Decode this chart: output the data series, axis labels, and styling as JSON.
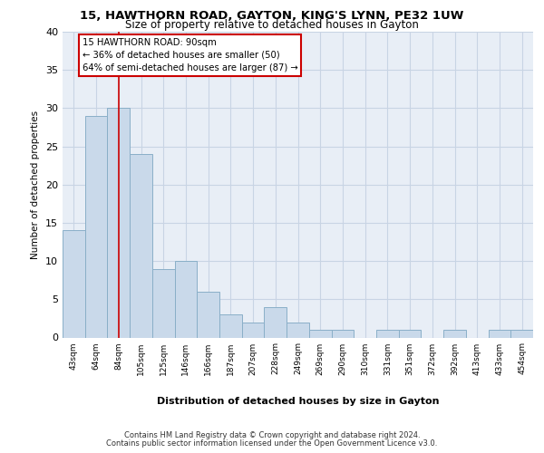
{
  "title1": "15, HAWTHORN ROAD, GAYTON, KING'S LYNN, PE32 1UW",
  "title2": "Size of property relative to detached houses in Gayton",
  "xlabel": "Distribution of detached houses by size in Gayton",
  "ylabel": "Number of detached properties",
  "categories": [
    "43sqm",
    "64sqm",
    "84sqm",
    "105sqm",
    "125sqm",
    "146sqm",
    "166sqm",
    "187sqm",
    "207sqm",
    "228sqm",
    "249sqm",
    "269sqm",
    "290sqm",
    "310sqm",
    "331sqm",
    "351sqm",
    "372sqm",
    "392sqm",
    "413sqm",
    "433sqm",
    "454sqm"
  ],
  "values": [
    14,
    29,
    30,
    24,
    9,
    10,
    6,
    3,
    2,
    4,
    2,
    1,
    1,
    0,
    1,
    1,
    0,
    1,
    0,
    1,
    1
  ],
  "bar_color": "#c9d9ea",
  "bar_edge_color": "#8aafc8",
  "grid_color": "#c8d4e4",
  "bg_color": "#e8eef6",
  "vline_x": 2,
  "vline_color": "#cc0000",
  "annotation_line1": "15 HAWTHORN ROAD: 90sqm",
  "annotation_line2": "← 36% of detached houses are smaller (50)",
  "annotation_line3": "64% of semi-detached houses are larger (87) →",
  "footer1": "Contains HM Land Registry data © Crown copyright and database right 2024.",
  "footer2": "Contains public sector information licensed under the Open Government Licence v3.0.",
  "ylim": [
    0,
    40
  ],
  "yticks": [
    0,
    5,
    10,
    15,
    20,
    25,
    30,
    35,
    40
  ]
}
